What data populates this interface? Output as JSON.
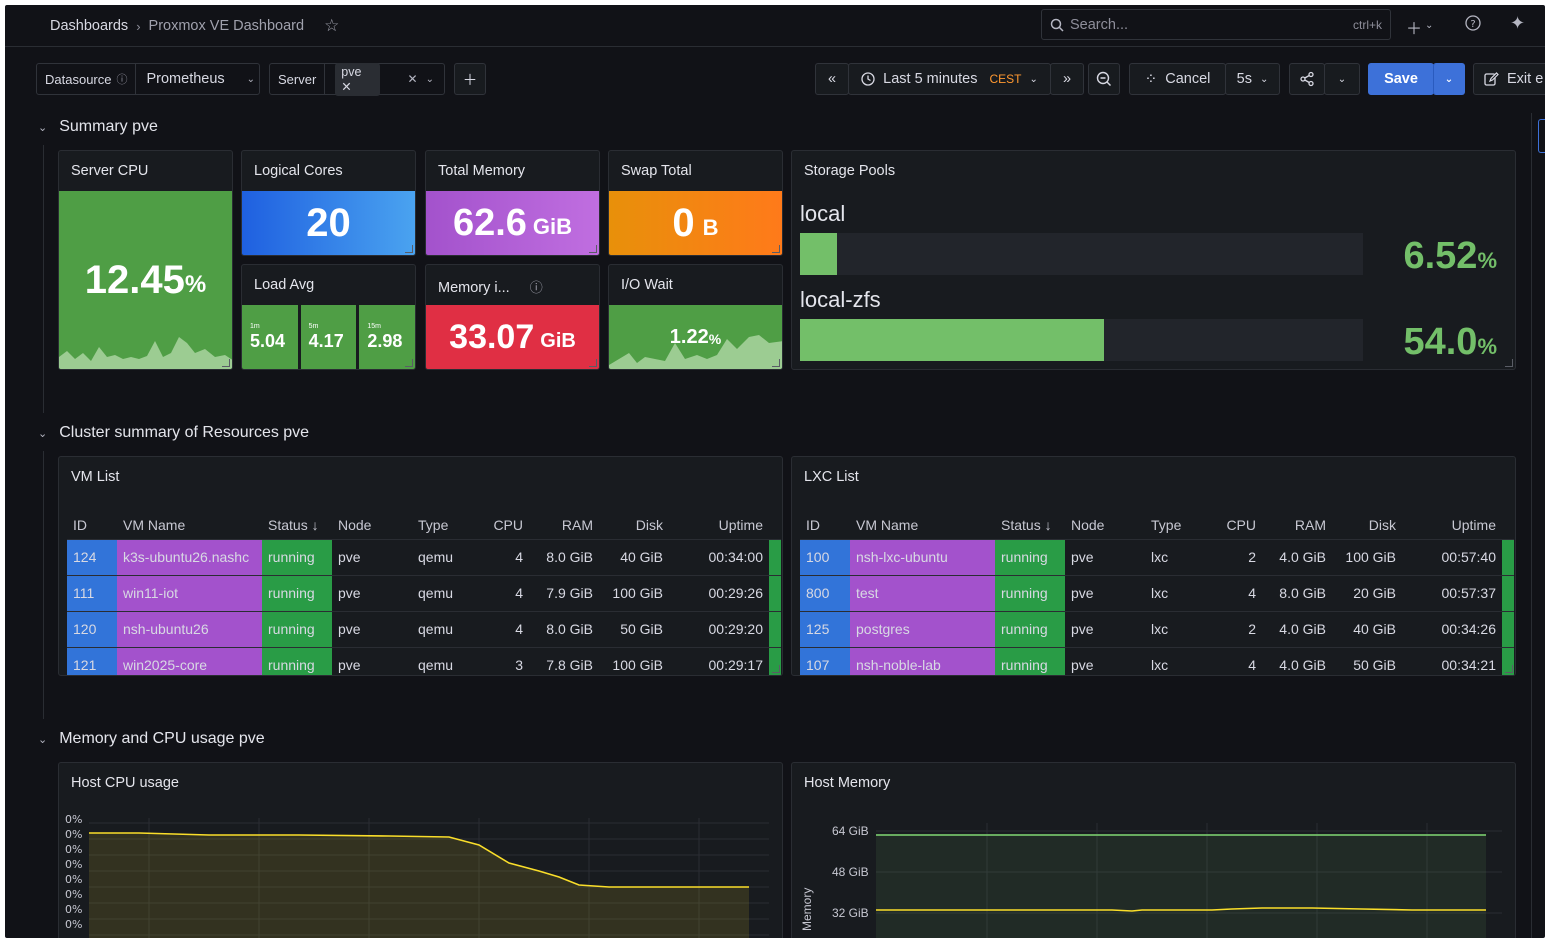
{
  "breadcrumb": {
    "root": "Dashboards",
    "current": "Proxmox VE Dashboard"
  },
  "search": {
    "placeholder": "Search...",
    "shortcut": "ctrl+k"
  },
  "vars": {
    "datasource_label": "Datasource",
    "datasource_value": "Prometheus",
    "server_label": "Server",
    "server_value": "pve"
  },
  "toolbar": {
    "time_range": "Last 5 minutes",
    "timezone": "CEST",
    "cancel": "Cancel",
    "refresh": "5s",
    "save": "Save",
    "exit": "Exit e"
  },
  "rows": {
    "summary": "Summary pve",
    "cluster": "Cluster summary of Resources pve",
    "memcpu": "Memory and CPU usage pve"
  },
  "stats": {
    "server_cpu": {
      "title": "Server CPU",
      "value": "12.45",
      "unit": "%"
    },
    "logical_cores": {
      "title": "Logical Cores",
      "value": "20"
    },
    "total_memory": {
      "title": "Total Memory",
      "value": "62.6",
      "unit": "GiB"
    },
    "swap_total": {
      "title": "Swap Total",
      "value": "0",
      "unit": "B"
    },
    "load_avg": {
      "title": "Load Avg",
      "items": [
        {
          "label": "1m",
          "value": "5.04"
        },
        {
          "label": "5m",
          "value": "4.17"
        },
        {
          "label": "15m",
          "value": "2.98"
        }
      ]
    },
    "memory_in_use": {
      "title": "Memory i...",
      "value": "33.07",
      "unit": "GiB"
    },
    "io_wait": {
      "title": "I/O Wait",
      "value": "1.22",
      "unit": "%"
    }
  },
  "storage": {
    "title": "Storage Pools",
    "pools": [
      {
        "name": "local",
        "value": "6.52",
        "unit": "%",
        "fraction": 0.0652
      },
      {
        "name": "local-zfs",
        "value": "54.0",
        "unit": "%",
        "fraction": 0.54
      }
    ]
  },
  "vm_list": {
    "title": "VM List",
    "columns": [
      "ID",
      "VM Name",
      "Status ↓",
      "Node",
      "Type",
      "CPU",
      "RAM",
      "Disk",
      "Uptime"
    ],
    "rows": [
      [
        "124",
        "k3s-ubuntu26.nashc",
        "running",
        "pve",
        "qemu",
        "4",
        "8.0 GiB",
        "40 GiB",
        "00:34:00"
      ],
      [
        "111",
        "win11-iot",
        "running",
        "pve",
        "qemu",
        "4",
        "7.9 GiB",
        "100 GiB",
        "00:29:26"
      ],
      [
        "120",
        "nsh-ubuntu26",
        "running",
        "pve",
        "qemu",
        "4",
        "8.0 GiB",
        "50 GiB",
        "00:29:20"
      ],
      [
        "121",
        "win2025-core",
        "running",
        "pve",
        "qemu",
        "3",
        "7.8 GiB",
        "100 GiB",
        "00:29:17"
      ]
    ]
  },
  "lxc_list": {
    "title": "LXC List",
    "columns": [
      "ID",
      "VM Name",
      "Status ↓",
      "Node",
      "Type",
      "CPU",
      "RAM",
      "Disk",
      "Uptime"
    ],
    "rows": [
      [
        "100",
        "nsh-lxc-ubuntu",
        "running",
        "pve",
        "lxc",
        "2",
        "4.0 GiB",
        "100 GiB",
        "00:57:40"
      ],
      [
        "800",
        "test",
        "running",
        "pve",
        "lxc",
        "4",
        "8.0 GiB",
        "20 GiB",
        "00:57:37"
      ],
      [
        "125",
        "postgres",
        "running",
        "pve",
        "lxc",
        "2",
        "4.0 GiB",
        "40 GiB",
        "00:34:26"
      ],
      [
        "107",
        "nsh-noble-lab",
        "running",
        "pve",
        "lxc",
        "4",
        "4.0 GiB",
        "50 GiB",
        "00:34:21"
      ]
    ]
  },
  "host_cpu": {
    "title": "Host CPU usage"
  },
  "host_memory": {
    "title": "Host Memory",
    "ylabel": "Memory",
    "ticks": [
      "64 GiB",
      "48 GiB",
      "32 GiB"
    ]
  },
  "colors": {
    "green": "#299c46",
    "light_green": "#73bf69",
    "blue": "#3274d9",
    "purple": "#a352cc",
    "orange": "#ff9830",
    "red": "#e02f44",
    "yellow": "#fade2a",
    "primary": "#3d71d9"
  }
}
